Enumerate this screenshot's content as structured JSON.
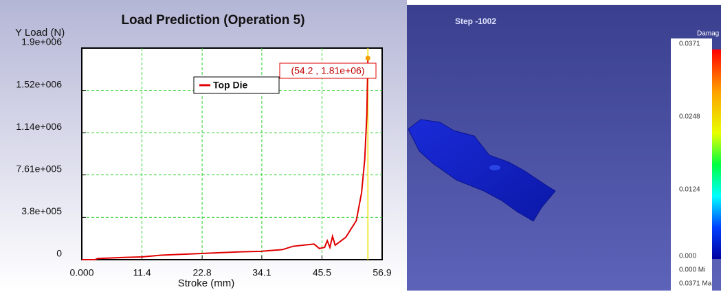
{
  "chart_data": {
    "type": "line",
    "title": "Load Prediction (Operation 5)",
    "x_label": "Stroke (mm)",
    "y_label": "Y Load (N)",
    "x": [
      0,
      2.5,
      3,
      8,
      11.4,
      15,
      20,
      25,
      30,
      34,
      38,
      40,
      42,
      44,
      45,
      46,
      46.5,
      47,
      47.5,
      48,
      50,
      52,
      53,
      53.6,
      54,
      54.2
    ],
    "series": [
      {
        "name": "Top Die",
        "color": "#e00000",
        "values": [
          0,
          0,
          10000,
          20000,
          25000,
          40000,
          50000,
          60000,
          70000,
          75000,
          90000,
          120000,
          130000,
          140000,
          100000,
          110000,
          170000,
          110000,
          210000,
          130000,
          200000,
          350000,
          600000,
          900000,
          1300000,
          1810000
        ]
      }
    ],
    "annotation": "(54.2 , 1.81e+06)",
    "xlim": [
      0,
      56.9
    ],
    "xticks": [
      {
        "value": 0,
        "label": "0.000"
      },
      11.4,
      22.8,
      34.1,
      45.5,
      56.9
    ],
    "ylim": [
      0,
      1900000
    ],
    "yticks": [
      {
        "value": 0,
        "label": "0"
      },
      {
        "value": 380000,
        "label": "3.8e+005"
      },
      {
        "value": 761000,
        "label": "7.61e+005"
      },
      {
        "value": 1140000,
        "label": "1.14e+006"
      },
      {
        "value": 1520000,
        "label": "1.52e+006"
      },
      {
        "value": 1900000,
        "label": "1.9e+006"
      }
    ],
    "grid": true
  },
  "viewer": {
    "step_label": "Step -1002",
    "legend_title": "Damag",
    "scale_labels": [
      "0.0371",
      "0.0248",
      "0.0124",
      "0.000"
    ],
    "min_label": "0.000  Mi",
    "max_label": "0.0371  Ma"
  }
}
